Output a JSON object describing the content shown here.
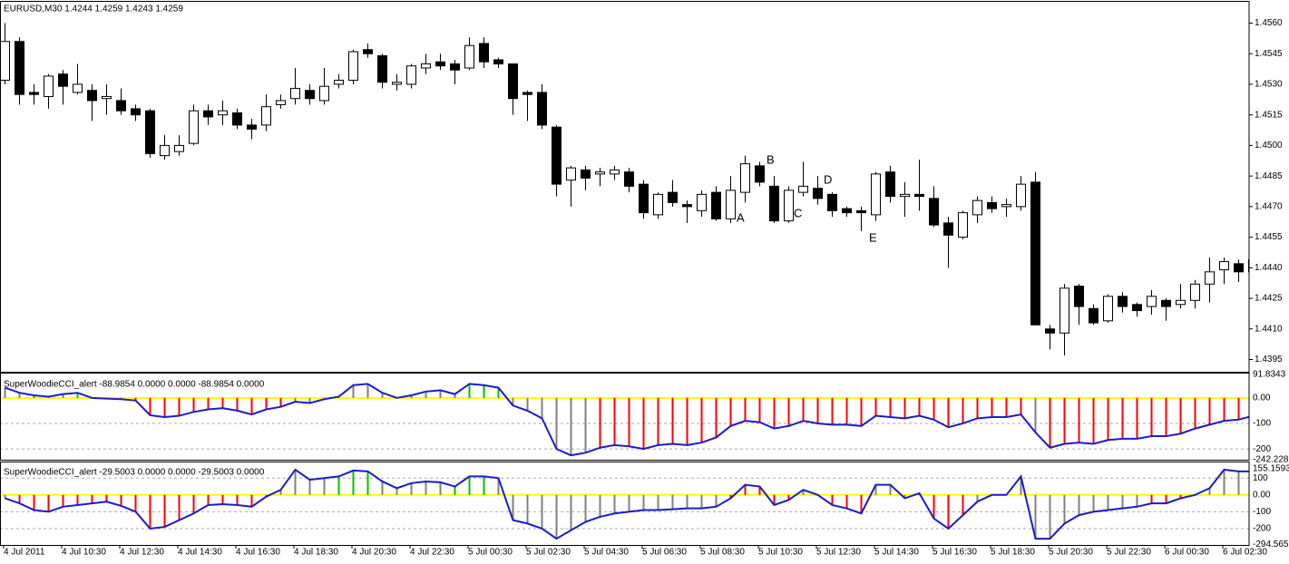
{
  "chart_data": [
    {
      "type": "candlestick",
      "title": "EURUSD,M30  1.4244 1.4259 1.4243 1.4259",
      "categories": [
        "4 Jul 2011",
        null,
        null,
        null,
        "4 Jul 10:30",
        null,
        null,
        null,
        "4 Jul 12:30",
        null,
        null,
        null,
        "4 Jul 14:30",
        null,
        null,
        null,
        "4 Jul 16:30",
        null,
        null,
        null,
        "4 Jul 18:30",
        null,
        null,
        null,
        "4 Jul 20:30",
        null,
        null,
        null,
        "4 Jul 22:30",
        null,
        null,
        null,
        "5 Jul 00:30",
        null,
        null,
        null,
        "5 Jul 02:30",
        null,
        null,
        null,
        "5 Jul 04:30",
        null,
        null,
        null,
        "5 Jul 06:30",
        null,
        null,
        null,
        "5 Jul 08:30",
        null,
        null,
        null,
        "5 Jul 10:30",
        null,
        null,
        null,
        "5 Jul 12:30",
        null,
        null,
        null,
        "5 Jul 14:30",
        null,
        null,
        null,
        "5 Jul 16:30",
        null,
        null,
        null,
        "5 Jul 18:30",
        null,
        null,
        null,
        "5 Jul 20:30",
        null,
        null,
        null,
        "5 Jul 22:30",
        null,
        null,
        null,
        "6 Jul 00:30",
        null,
        null,
        null,
        "6 Jul 02:30",
        null,
        null
      ],
      "open": [
        1.4532,
        1.4551,
        1.4526,
        1.4524,
        1.4535,
        1.4526,
        1.4527,
        1.4523,
        1.4522,
        1.4518,
        1.4517,
        1.4495,
        1.4497,
        1.4501,
        1.4517,
        1.4515,
        1.4516,
        1.451,
        1.451,
        1.452,
        1.4523,
        1.4527,
        1.4522,
        1.453,
        1.4532,
        1.4547,
        1.4544,
        1.453,
        1.453,
        1.4538,
        1.4541,
        1.454,
        1.4538,
        1.455,
        1.4542,
        1.454,
        1.4526,
        1.4526,
        1.4509,
        1.4483,
        1.4488,
        1.4486,
        1.4486,
        1.4487,
        1.4481,
        1.4466,
        1.4477,
        1.4471,
        1.4468,
        1.4477,
        1.4464,
        1.4477,
        1.449,
        1.448,
        1.4463,
        1.4477,
        1.4479,
        1.4476,
        1.4469,
        1.4468,
        1.4466,
        1.4487,
        1.4475,
        1.4476,
        1.4474,
        1.4462,
        1.4455,
        1.4466,
        1.4472,
        1.447,
        1.447,
        1.4482,
        1.441,
        1.4408,
        1.4431,
        1.442,
        1.4414,
        1.4426,
        1.4422,
        1.4421,
        1.4424,
        1.4422,
        1.4424,
        1.4432,
        1.4439,
        1.4442,
        1.4438
      ],
      "high": [
        1.456,
        1.4553,
        1.453,
        1.4535,
        1.4537,
        1.454,
        1.453,
        1.453,
        1.4528,
        1.452,
        1.4518,
        1.4505,
        1.4505,
        1.452,
        1.452,
        1.4522,
        1.4518,
        1.4513,
        1.4525,
        1.4525,
        1.4538,
        1.453,
        1.4538,
        1.4535,
        1.4547,
        1.455,
        1.4545,
        1.4535,
        1.454,
        1.4545,
        1.4545,
        1.4542,
        1.4553,
        1.4553,
        1.4543,
        1.454,
        1.4527,
        1.453,
        1.451,
        1.449,
        1.449,
        1.4489,
        1.449,
        1.4489,
        1.4483,
        1.4477,
        1.4483,
        1.4473,
        1.4478,
        1.448,
        1.4485,
        1.4495,
        1.4492,
        1.4485,
        1.448,
        1.4492,
        1.4485,
        1.4477,
        1.447,
        1.447,
        1.4487,
        1.449,
        1.4482,
        1.4493,
        1.448,
        1.4465,
        1.4468,
        1.4475,
        1.4475,
        1.4474,
        1.4485,
        1.4487,
        1.4412,
        1.4432,
        1.4432,
        1.4422,
        1.4427,
        1.4428,
        1.4423,
        1.4429,
        1.4425,
        1.4432,
        1.4434,
        1.4445,
        1.4445,
        1.4444,
        1.4446
      ],
      "low": [
        1.453,
        1.452,
        1.452,
        1.4518,
        1.452,
        1.4525,
        1.4512,
        1.4515,
        1.4515,
        1.4512,
        1.4494,
        1.4493,
        1.4495,
        1.45,
        1.451,
        1.451,
        1.4508,
        1.4503,
        1.4507,
        1.4518,
        1.452,
        1.452,
        1.452,
        1.4528,
        1.453,
        1.4543,
        1.4528,
        1.4527,
        1.4528,
        1.4535,
        1.4537,
        1.453,
        1.4537,
        1.4538,
        1.4538,
        1.4515,
        1.4512,
        1.4508,
        1.4475,
        1.447,
        1.4478,
        1.448,
        1.4483,
        1.4477,
        1.4464,
        1.4464,
        1.447,
        1.4462,
        1.4465,
        1.4463,
        1.4462,
        1.4472,
        1.448,
        1.4462,
        1.4462,
        1.4475,
        1.4471,
        1.4465,
        1.4465,
        1.4458,
        1.4463,
        1.4472,
        1.4465,
        1.4468,
        1.446,
        1.444,
        1.4454,
        1.4462,
        1.4467,
        1.4465,
        1.4468,
        1.4412,
        1.44,
        1.4397,
        1.4412,
        1.4412,
        1.4413,
        1.4418,
        1.4416,
        1.4417,
        1.4414,
        1.442,
        1.442,
        1.4423,
        1.4432,
        1.4433,
        1.4434
      ],
      "close": [
        1.4551,
        1.4525,
        1.4525,
        1.4534,
        1.4529,
        1.453,
        1.4522,
        1.4524,
        1.4517,
        1.4515,
        1.4496,
        1.45,
        1.45,
        1.4517,
        1.4514,
        1.4517,
        1.451,
        1.4508,
        1.4519,
        1.4522,
        1.4528,
        1.4523,
        1.4529,
        1.4532,
        1.4546,
        1.4545,
        1.4531,
        1.4531,
        1.4539,
        1.454,
        1.4539,
        1.4537,
        1.4549,
        1.4541,
        1.454,
        1.4523,
        1.4525,
        1.451,
        1.4481,
        1.4489,
        1.4484,
        1.4487,
        1.4488,
        1.448,
        1.4467,
        1.4476,
        1.4472,
        1.447,
        1.4476,
        1.4464,
        1.4478,
        1.4491,
        1.4482,
        1.4463,
        1.4478,
        1.448,
        1.4474,
        1.4468,
        1.4467,
        1.4467,
        1.4486,
        1.4475,
        1.4476,
        1.4475,
        1.4461,
        1.4456,
        1.4467,
        1.4473,
        1.4469,
        1.4471,
        1.4481,
        1.4412,
        1.4408,
        1.443,
        1.4421,
        1.4413,
        1.4426,
        1.4421,
        1.4419,
        1.4426,
        1.4421,
        1.4424,
        1.4432,
        1.4438,
        1.4443,
        1.4438,
        1.4444
      ],
      "up_color": "#ffffff",
      "down_color": "#000000",
      "ylim": [
        1.4389,
        1.457
      ],
      "yticks": [
        {
          "value": 1.456,
          "label": "1.4560"
        },
        1.4545,
        {
          "value": 1.453,
          "label": "1.4530"
        },
        1.4515,
        {
          "value": 1.45,
          "label": "1.4500"
        },
        1.4485,
        {
          "value": 1.447,
          "label": "1.4470"
        },
        1.4455,
        {
          "value": 1.444,
          "label": "1.4440"
        },
        1.4425,
        {
          "value": 1.441,
          "label": "1.4410"
        },
        1.4395
      ],
      "annotations": [
        "A",
        "B",
        "C",
        "D",
        "E"
      ],
      "annotation_color": "#e01010"
    },
    {
      "type": "cci",
      "title": "SuperWoodieCCI_alert -88.9854 0.0000 0.0000 -88.9854 0.0000",
      "values": [
        40,
        20,
        10,
        5,
        15,
        20,
        0,
        -3,
        -5,
        -10,
        -68,
        -75,
        -70,
        -55,
        -45,
        -40,
        -50,
        -65,
        -45,
        -35,
        -15,
        -20,
        -5,
        5,
        50,
        55,
        20,
        0,
        10,
        25,
        30,
        15,
        55,
        50,
        40,
        -30,
        -50,
        -80,
        -200,
        -225,
        -215,
        -195,
        -185,
        -190,
        -200,
        -185,
        -180,
        -185,
        -175,
        -155,
        -110,
        -90,
        -95,
        -120,
        -110,
        -90,
        -100,
        -105,
        -105,
        -110,
        -70,
        -75,
        -80,
        -70,
        -85,
        -115,
        -100,
        -80,
        -75,
        -75,
        -65,
        -135,
        -195,
        -180,
        -175,
        -180,
        -165,
        -160,
        -160,
        -150,
        -150,
        -140,
        -120,
        -105,
        -90,
        -85,
        -70
      ],
      "bar_colors": [
        "gray",
        "gray",
        "#00c000",
        "#00c000",
        "gray",
        "#00c000",
        "red",
        "red",
        "red",
        "red",
        "red",
        "red",
        "red",
        "red",
        "red",
        "red",
        "red",
        "red",
        "red",
        "red",
        "gray",
        "gray",
        "gray",
        "gray",
        "gray",
        "gray",
        "gray",
        "gray",
        "gray",
        "gray",
        "gray",
        "gray",
        "#00c000",
        "#00c000",
        "#00c000",
        "gray",
        "gray",
        "gray",
        "gray",
        "gray",
        "gray",
        "red",
        "red",
        "red",
        "red",
        "red",
        "red",
        "red",
        "red",
        "red",
        "red",
        "red",
        "red",
        "red",
        "red",
        "red",
        "red",
        "red",
        "red",
        "red",
        "red",
        "red",
        "red",
        "red",
        "red",
        "red",
        "red",
        "red",
        "red",
        "red",
        "red",
        "gray",
        "red",
        "red",
        "red",
        "red",
        "red",
        "red",
        "red",
        "red",
        "red",
        "red",
        "red",
        "red",
        "red",
        "red",
        "red"
      ],
      "line_color": "#1c1cc8",
      "zero_color": "#ffff00",
      "ylim": [
        -242.228,
        91.8343
      ],
      "yticks": [
        91.8343,
        {
          "value": 0,
          "label": "0.00"
        },
        -100,
        -200,
        -242.228
      ]
    },
    {
      "type": "cci",
      "title": "SuperWoodieCCI_alert -29.5003 0.0000 0.0000 -29.5003 0.0000",
      "values": [
        -20,
        -50,
        -90,
        -100,
        -70,
        -60,
        -50,
        -40,
        -65,
        -100,
        -200,
        -190,
        -150,
        -110,
        -60,
        -55,
        -60,
        -70,
        -10,
        30,
        150,
        90,
        100,
        110,
        145,
        140,
        80,
        40,
        70,
        80,
        75,
        50,
        110,
        110,
        100,
        -150,
        -170,
        -200,
        -260,
        -210,
        -160,
        -130,
        -110,
        -100,
        -90,
        -90,
        -85,
        -80,
        -80,
        -70,
        -20,
        60,
        50,
        -60,
        -30,
        30,
        0,
        -60,
        -80,
        -110,
        60,
        60,
        -20,
        10,
        -140,
        -200,
        -120,
        -40,
        0,
        0,
        110,
        -260,
        -260,
        -170,
        -120,
        -100,
        -90,
        -80,
        -70,
        -50,
        -50,
        -20,
        0,
        40,
        150,
        140,
        140
      ],
      "bar_colors": [
        "gray",
        "red",
        "red",
        "red",
        "red",
        "red",
        "red",
        "red",
        "red",
        "red",
        "red",
        "red",
        "red",
        "red",
        "red",
        "red",
        "red",
        "red",
        "gray",
        "gray",
        "gray",
        "gray",
        "gray",
        "#00c000",
        "#00c000",
        "#00c000",
        "gray",
        "gray",
        "gray",
        "gray",
        "gray",
        "#00c000",
        "#00c000",
        "#00c000",
        "gray",
        "gray",
        "gray",
        "gray",
        "gray",
        "gray",
        "gray",
        "gray",
        "gray",
        "gray",
        "gray",
        "gray",
        "gray",
        "gray",
        "gray",
        "gray",
        "red",
        "red",
        "red",
        "red",
        "red",
        "gray",
        "gray",
        "red",
        "red",
        "red",
        "gray",
        "gray",
        "gray",
        "gray",
        "red",
        "red",
        "red",
        "gray",
        "gray",
        "gray",
        "gray",
        "gray",
        "gray",
        "gray",
        "gray",
        "gray",
        "gray",
        "gray",
        "gray",
        "red",
        "red",
        "red",
        "red",
        "gray",
        "gray",
        "gray",
        "gray"
      ],
      "line_color": "#1c1cc8",
      "zero_color": "#ffff00",
      "ylim": [
        -294.565,
        155.1593
      ],
      "yticks": [
        155.1593,
        100,
        {
          "value": 0,
          "label": "0.00"
        },
        -100,
        -200,
        -294.565
      ]
    }
  ]
}
